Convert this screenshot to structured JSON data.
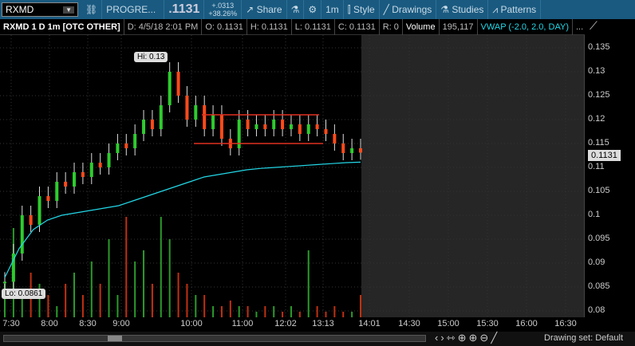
{
  "toolbar": {
    "symbol": "RXMD",
    "link_icon": "link-icon",
    "company": "PROGRE...",
    "last": ".1131",
    "change": "+.0313",
    "change_pct": "+38.26%",
    "share": "Share",
    "aggregation": "1m",
    "style": "Style",
    "drawings": "Drawings",
    "studies": "Studies",
    "patterns": "Patterns"
  },
  "info": {
    "title": "RXMD 1 D 1m [OTC OTHER]",
    "date": "D: 4/5/18 2:01 PM",
    "open": "O: 0.1131",
    "high": "H: 0.1131",
    "low": "L: 0.1131",
    "close": "C: 0.1131",
    "range": "R: 0",
    "volume_label": "Volume",
    "volume": "195,117",
    "vwap": "VWAP (-2.0, 2.0, DAY)",
    "more": "..."
  },
  "chart": {
    "hi_label": "Hi: 0.13",
    "lo_label": "Lo: 0.0861",
    "last_price": "0.1131",
    "y_ticks": [
      "0.135",
      "0.13",
      "0.125",
      "0.12",
      "0.115",
      "0.11",
      "0.105",
      "0.1",
      "0.095",
      "0.09",
      "0.085",
      "0.08"
    ],
    "x_ticks": [
      "7:30",
      "8:00",
      "8:30",
      "9:00",
      "10:00",
      "11:00",
      "12:02",
      "13:13",
      "14:01",
      "14:30",
      "15:00",
      "15:30",
      "16:00",
      "16:30"
    ],
    "closes": [
      0.0861,
      0.092,
      0.1,
      0.098,
      0.104,
      0.103,
      0.107,
      0.106,
      0.109,
      0.108,
      0.111,
      0.11,
      0.113,
      0.115,
      0.114,
      0.117,
      0.12,
      0.118,
      0.123,
      0.13,
      0.125,
      0.12,
      0.123,
      0.118,
      0.121,
      0.116,
      0.114,
      0.12,
      0.118,
      0.119,
      0.118,
      0.12,
      0.118,
      0.119,
      0.117,
      0.119,
      0.118,
      0.117,
      0.115,
      0.113,
      0.114,
      0.1131
    ],
    "vwap": [
      0.087,
      0.093,
      0.097,
      0.099,
      0.1,
      0.1005,
      0.101,
      0.1015,
      0.102,
      0.103,
      0.104,
      0.105,
      0.106,
      0.107,
      0.108,
      0.1085,
      0.109,
      0.1095,
      0.1098,
      0.11,
      0.1102,
      0.1104,
      0.1106,
      0.1108,
      0.111,
      0.1111
    ],
    "volume": [
      0.3,
      0.8,
      0.2,
      0.4,
      0.3,
      0.2,
      0.1,
      0.3,
      0.4,
      0.2,
      0.5,
      0.3,
      0.7,
      0.2,
      0.9,
      0.5,
      0.6,
      0.3,
      0.9,
      0.7,
      0.4,
      0.3,
      0.2,
      0.2,
      0.1,
      0.1,
      0.15,
      0.1,
      0.1,
      0.05,
      0.1,
      0.1,
      0.05,
      0.1,
      0.05,
      0.6,
      0.1,
      0.05,
      0.1,
      0.05,
      0.05,
      0.2
    ],
    "colors": {
      "up": "#2ecc2e",
      "down": "#ff4a1a",
      "vwap": "#22d8e8",
      "drawing": "#e03020",
      "future_bg": "#262626"
    }
  },
  "status": {
    "drawing_set": "Drawing set: Default"
  }
}
